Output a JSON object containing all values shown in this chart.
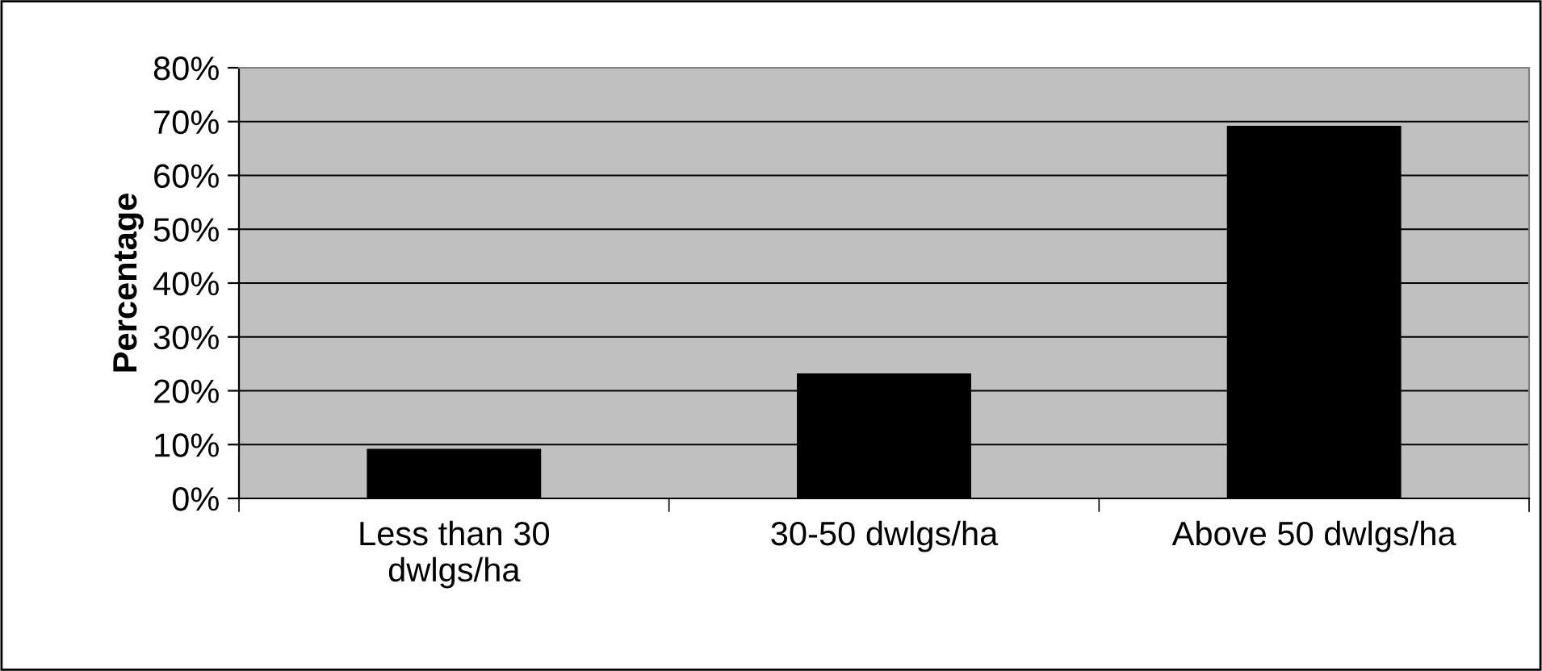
{
  "chart_data": {
    "type": "bar",
    "ylabel": "Percentage",
    "categories": [
      "Less than 30\ndwlgs/ha",
      "30-50 dwlgs/ha",
      "Above 50 dwlgs/ha"
    ],
    "values": [
      9,
      23,
      69
    ],
    "color": "#000000",
    "ylim": [
      0,
      80
    ],
    "yticks": [
      {
        "value": 0,
        "label": "0%"
      },
      {
        "value": 10,
        "label": "10%"
      },
      {
        "value": 20,
        "label": "20%"
      },
      {
        "value": 30,
        "label": "30%"
      },
      {
        "value": 40,
        "label": "40%"
      },
      {
        "value": 50,
        "label": "50%"
      },
      {
        "value": 60,
        "label": "60%"
      },
      {
        "value": 70,
        "label": "70%"
      },
      {
        "value": 80,
        "label": "80%"
      }
    ],
    "grid": "y"
  }
}
